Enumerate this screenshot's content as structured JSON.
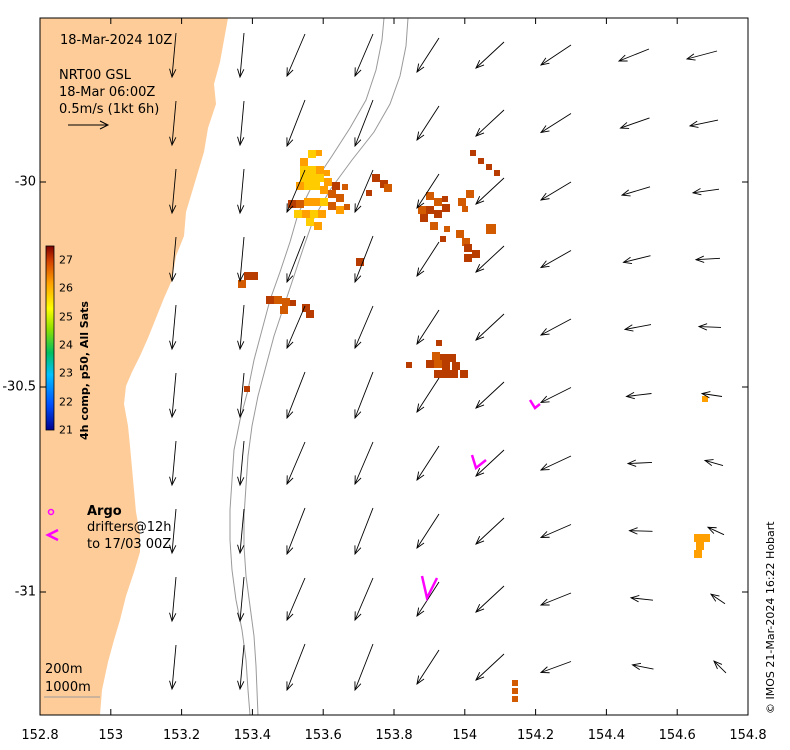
{
  "map": {
    "timestamp": "18-Mar-2024 10Z",
    "source_line1": "NRT00 GSL",
    "source_line2": "18-Mar 06:00Z",
    "scale_label": "0.5m/s (1kt 6h)",
    "credit": "© IMOS 21-Mar-2024 16:22 Hobart",
    "depth_200": "200m",
    "depth_1000": "1000m",
    "colors": {
      "land": "#fdcc99",
      "isobath": "#9a9a9a",
      "arrow": "#000000",
      "drifter": "#ff00ff",
      "argo": "#ff00ff"
    }
  },
  "axes": {
    "x_ticks": [
      "152.8",
      "153",
      "153.2",
      "153.4",
      "153.6",
      "153.8",
      "154",
      "154.2",
      "154.4",
      "154.6",
      "154.8"
    ],
    "y_ticks": [
      "-30",
      "-30.5",
      "-31"
    ],
    "xlim": [
      152.8,
      154.8
    ],
    "ylim": [
      -31.3,
      -29.6
    ]
  },
  "colorbar": {
    "title": "4h comp, p50, All Sats",
    "ticks": [
      "27",
      "26",
      "25",
      "24",
      "23",
      "22",
      "21"
    ],
    "range": [
      21,
      27.5
    ]
  },
  "legend": {
    "argo_label": "Argo",
    "drifters_label": "drifters@12h",
    "drifters_period": "to 17/03 00Z"
  }
}
